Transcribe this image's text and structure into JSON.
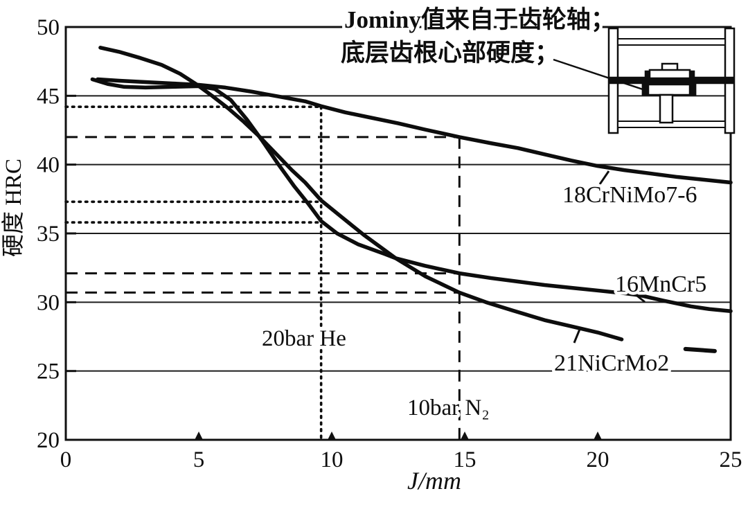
{
  "annotation": {
    "line1": "Jominy值来自于齿轮轴；",
    "line2": "底层齿根心部硬度；"
  },
  "chart_data": {
    "type": "line",
    "title": "",
    "xlabel": "J/mm",
    "ylabel": "硬度 HRC",
    "xlim": [
      0,
      25
    ],
    "ylim": [
      20,
      50
    ],
    "x_ticks": [
      0,
      5,
      10,
      15,
      20,
      25
    ],
    "y_ticks": [
      20,
      25,
      30,
      35,
      40,
      45,
      50
    ],
    "gridlines_hrc": [
      25,
      30,
      35,
      40,
      45
    ],
    "legend_position": "labels-on-curves",
    "series": [
      {
        "name": "18CrNiMo7-6",
        "points": [
          [
            1.2,
            46.2
          ],
          [
            2,
            46.1
          ],
          [
            3,
            46.0
          ],
          [
            4,
            45.9
          ],
          [
            5,
            45.8
          ],
          [
            6,
            45.6
          ],
          [
            7,
            45.3
          ],
          [
            8,
            44.95
          ],
          [
            9,
            44.6
          ],
          [
            9.6,
            44.25
          ],
          [
            10.5,
            43.8
          ],
          [
            11.5,
            43.4
          ],
          [
            12.5,
            43.0
          ],
          [
            13.5,
            42.55
          ],
          [
            14.8,
            42.0
          ],
          [
            16,
            41.55
          ],
          [
            17,
            41.2
          ],
          [
            18,
            40.75
          ],
          [
            19,
            40.3
          ],
          [
            20,
            39.9
          ],
          [
            21,
            39.6
          ],
          [
            22,
            39.35
          ],
          [
            23,
            39.1
          ],
          [
            24,
            38.9
          ],
          [
            25,
            38.7
          ]
        ]
      },
      {
        "name": "16MnCr5",
        "points": [
          [
            1.0,
            46.2
          ],
          [
            1.6,
            45.85
          ],
          [
            2.2,
            45.65
          ],
          [
            3,
            45.6
          ],
          [
            4,
            45.65
          ],
          [
            5,
            45.7
          ],
          [
            5.6,
            45.5
          ],
          [
            6.2,
            44.7
          ],
          [
            6.8,
            43.3
          ],
          [
            7.4,
            41.7
          ],
          [
            8.0,
            40.0
          ],
          [
            8.6,
            38.4
          ],
          [
            9.1,
            37.2
          ],
          [
            9.6,
            35.9
          ],
          [
            10.2,
            35.0
          ],
          [
            11,
            34.2
          ],
          [
            12,
            33.5
          ],
          [
            12.4,
            33.2
          ],
          [
            13.5,
            32.65
          ],
          [
            14.8,
            32.1
          ],
          [
            16,
            31.75
          ],
          [
            17,
            31.5
          ],
          [
            18,
            31.25
          ],
          [
            19,
            31.05
          ],
          [
            20,
            30.85
          ],
          [
            21,
            30.65
          ],
          [
            21.6,
            30.5
          ],
          [
            22.5,
            30.1
          ],
          [
            23.5,
            29.7
          ],
          [
            24.2,
            29.5
          ],
          [
            25,
            29.35
          ]
        ]
      },
      {
        "name": "21NiCrMo2",
        "points": [
          [
            1.3,
            48.5
          ],
          [
            2,
            48.2
          ],
          [
            2.8,
            47.75
          ],
          [
            3.6,
            47.25
          ],
          [
            4.3,
            46.6
          ],
          [
            4.9,
            45.85
          ],
          [
            5.5,
            45.0
          ],
          [
            6.1,
            44.1
          ],
          [
            6.7,
            43.1
          ],
          [
            7.3,
            42.0
          ],
          [
            7.9,
            40.8
          ],
          [
            8.5,
            39.6
          ],
          [
            9.0,
            38.7
          ],
          [
            9.6,
            37.4
          ],
          [
            10.3,
            36.3
          ],
          [
            11.2,
            34.9
          ],
          [
            12.4,
            33.2
          ],
          [
            13.5,
            31.9
          ],
          [
            14.8,
            30.7
          ],
          [
            15.8,
            30.0
          ],
          [
            16.8,
            29.4
          ],
          [
            18,
            28.7
          ],
          [
            19,
            28.25
          ],
          [
            20,
            27.8
          ],
          [
            20.9,
            27.3
          ]
        ],
        "end_dash": [
          [
            23.3,
            26.6
          ],
          [
            24.4,
            26.45
          ]
        ]
      }
    ],
    "guides": [
      {
        "style": "dotted",
        "label": "20bar He",
        "j": 9.6,
        "hrc_intercepts": [
          44.2,
          37.3,
          35.8
        ]
      },
      {
        "style": "dashed",
        "label": "10bar N₂",
        "j": 14.8,
        "hrc_intercepts": [
          42.0,
          32.1,
          30.7
        ]
      }
    ]
  }
}
